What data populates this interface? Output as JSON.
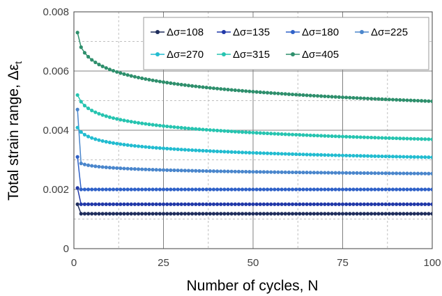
{
  "chart_data": {
    "type": "line",
    "title": "",
    "xlabel": "Number of cycles, N",
    "ylabel": "Total strain range, Δε",
    "ylabel_subscript": "t",
    "xlim": [
      0,
      100
    ],
    "ylim": [
      0,
      0.008
    ],
    "x_ticks": [
      "0",
      "25",
      "50",
      "75",
      "100"
    ],
    "y_ticks": [
      "0",
      "0.002",
      "0.004",
      "0.006",
      "0.008"
    ],
    "grid": true,
    "legend_placement": "top-right",
    "series": [
      {
        "name": "Δσ=108",
        "color": "#1f2d5c",
        "first_values": [
          0.0015
        ],
        "a": 0.00118,
        "b": 0.0,
        "c": 0.0
      },
      {
        "name": "Δσ=135",
        "color": "#2138a8",
        "first_values": [
          0.00205
        ],
        "a": 0.0015,
        "b": 0.0,
        "c": 0.0
      },
      {
        "name": "Δσ=180",
        "color": "#2f61c8",
        "first_values": [
          0.0031
        ],
        "a": 0.002,
        "b": 0.0,
        "c": 0.0
      },
      {
        "name": "Δσ=225",
        "color": "#4a86cc",
        "first_values": [
          0.0047
        ],
        "a": 0.00294,
        "b": 8.8e-05,
        "c": 0.0
      },
      {
        "name": "Δσ=270",
        "color": "#22bcd0",
        "first_values": [],
        "a": 0.00409,
        "b": 0.000218,
        "c": 0.0
      },
      {
        "name": "Δσ=315",
        "color": "#26c4b0",
        "first_values": [],
        "a": 0.00519,
        "b": 0.000325,
        "c": 0.0
      },
      {
        "name": "Δσ=405",
        "color": "#2e8f6c",
        "first_values": [
          0.0073
        ],
        "a": 0.00713,
        "b": 0.000467,
        "c": 0.0
      }
    ],
    "x_points": "1..100"
  }
}
